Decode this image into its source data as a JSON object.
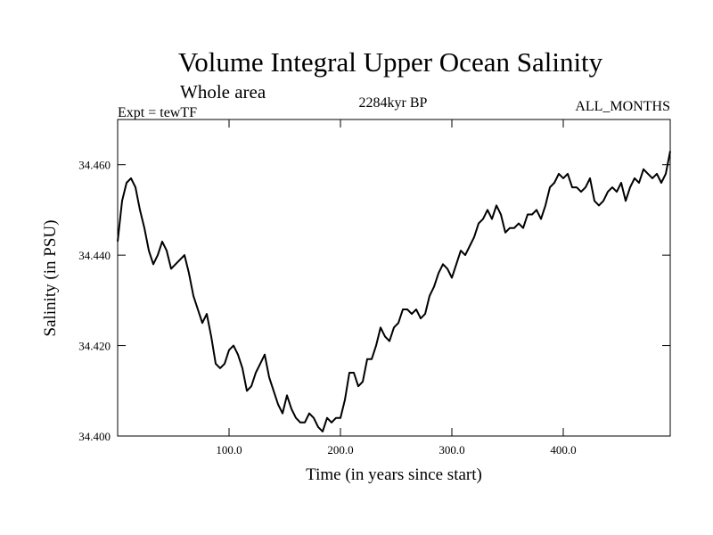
{
  "chart_data": {
    "type": "line",
    "title": "Volume Integral Upper Ocean Salinity",
    "subtitle": "Whole area",
    "experiment": "Expt = tewTF",
    "period": "2284kyr BP",
    "months": "ALL_MONTHS",
    "xlabel": "Time (in years since start)",
    "ylabel": "Salinity (in PSU)",
    "xlim": [
      0,
      496
    ],
    "ylim": [
      34.4,
      34.47
    ],
    "x_ticks": [
      {
        "value": 100,
        "label": "100.0"
      },
      {
        "value": 200,
        "label": "200.0"
      },
      {
        "value": 300,
        "label": "300.0"
      },
      {
        "value": 400,
        "label": "400.0"
      }
    ],
    "y_ticks": [
      {
        "value": 34.4,
        "label": "34.400"
      },
      {
        "value": 34.42,
        "label": "34.420"
      },
      {
        "value": 34.44,
        "label": "34.440"
      },
      {
        "value": 34.46,
        "label": "34.460"
      }
    ],
    "series": [
      {
        "name": "Salinity",
        "x": [
          0,
          4,
          8,
          12,
          16,
          20,
          24,
          28,
          32,
          36,
          40,
          44,
          48,
          52,
          56,
          60,
          64,
          68,
          72,
          76,
          80,
          84,
          88,
          92,
          96,
          100,
          104,
          108,
          112,
          116,
          120,
          124,
          128,
          132,
          136,
          140,
          144,
          148,
          152,
          156,
          160,
          164,
          168,
          172,
          176,
          180,
          184,
          188,
          192,
          196,
          200,
          204,
          208,
          212,
          216,
          220,
          224,
          228,
          232,
          236,
          240,
          244,
          248,
          252,
          256,
          260,
          264,
          268,
          272,
          276,
          280,
          284,
          288,
          292,
          296,
          300,
          304,
          308,
          312,
          316,
          320,
          324,
          328,
          332,
          336,
          340,
          344,
          348,
          352,
          356,
          360,
          364,
          368,
          372,
          376,
          380,
          384,
          388,
          392,
          396,
          400,
          404,
          408,
          412,
          416,
          420,
          424,
          428,
          432,
          436,
          440,
          444,
          448,
          452,
          456,
          460,
          464,
          468,
          472,
          476,
          480,
          484,
          488,
          492,
          496
        ],
        "y": [
          34.443,
          34.452,
          34.456,
          34.457,
          34.455,
          34.45,
          34.446,
          34.441,
          34.438,
          34.44,
          34.443,
          34.441,
          34.437,
          34.438,
          34.439,
          34.44,
          34.436,
          34.431,
          34.428,
          34.425,
          34.427,
          34.422,
          34.416,
          34.415,
          34.416,
          34.419,
          34.42,
          34.418,
          34.415,
          34.41,
          34.411,
          34.414,
          34.416,
          34.418,
          34.413,
          34.41,
          34.407,
          34.405,
          34.409,
          34.406,
          34.404,
          34.403,
          34.403,
          34.405,
          34.404,
          34.402,
          34.401,
          34.404,
          34.403,
          34.404,
          34.404,
          34.408,
          34.414,
          34.414,
          34.411,
          34.412,
          34.417,
          34.417,
          34.42,
          34.424,
          34.422,
          34.421,
          34.424,
          34.425,
          34.428,
          34.428,
          34.427,
          34.428,
          34.426,
          34.427,
          34.431,
          34.433,
          34.436,
          34.438,
          34.437,
          34.435,
          34.438,
          34.441,
          34.44,
          34.442,
          34.444,
          34.447,
          34.448,
          34.45,
          34.448,
          34.451,
          34.449,
          34.445,
          34.446,
          34.446,
          34.447,
          34.446,
          34.449,
          34.449,
          34.45,
          34.448,
          34.451,
          34.455,
          34.456,
          34.458,
          34.457,
          34.458,
          34.455,
          34.455,
          34.454,
          34.455,
          34.457,
          34.452,
          34.451,
          34.452,
          34.454,
          34.455,
          34.454,
          34.456,
          34.452,
          34.455,
          34.457,
          34.456,
          34.459,
          34.458,
          34.457,
          34.458,
          34.456,
          34.458,
          34.463
        ]
      }
    ]
  }
}
